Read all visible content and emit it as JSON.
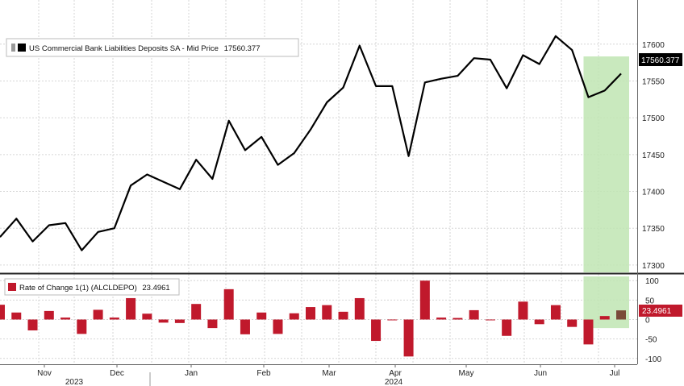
{
  "chart_data": [
    {
      "type": "line",
      "legend": "US Commercial Bank Liabilities Deposits SA - Mid Price",
      "last_value_label": "17560.377",
      "last_price_tag": "17560.377",
      "y_ticks": [
        "17300",
        "17350",
        "17400",
        "17450",
        "17500",
        "17550",
        "17600"
      ],
      "ylim": [
        17290,
        17660
      ],
      "grid": true,
      "legend_position": "top-left",
      "colors": {
        "line": "#000000",
        "highlight": "#bfe5b3",
        "tag_bg": "#000000"
      },
      "series": [
        {
          "values": [
            17338,
            17363,
            17332,
            17354,
            17357,
            17320,
            17345,
            17350,
            17408,
            17423,
            17413,
            17403,
            17443,
            17417,
            17496,
            17456,
            17474,
            17436,
            17452,
            17484,
            17521,
            17541,
            17598,
            17543,
            17543,
            17448,
            17548,
            17553,
            17557,
            17581,
            17579,
            17540,
            17585,
            17573,
            17611,
            17592,
            17528,
            17537,
            17560
          ]
        }
      ]
    },
    {
      "type": "bar",
      "legend": "Rate of Change 1(1) (ALCLDEPO)",
      "last_value_label": "23.4961",
      "last_price_tag": "23.4961",
      "y_ticks": [
        "-100",
        "-50",
        "0",
        "50",
        "100"
      ],
      "ylim": [
        -115,
        115
      ],
      "grid": true,
      "colors": {
        "bar": "#c0192c",
        "last_bar": "#7a4a3a",
        "tag_bg": "#c0192c",
        "highlight": "#bfe5b3"
      },
      "values": [
        38,
        18,
        -28,
        22,
        5,
        -37,
        25,
        5,
        55,
        15,
        -8,
        -9,
        40,
        -22,
        78,
        -38,
        18,
        -37,
        16,
        32,
        37,
        20,
        55,
        -55,
        0,
        -95,
        100,
        5,
        4,
        24,
        -2,
        -42,
        46,
        -12,
        37,
        -19,
        -64,
        9,
        23.5
      ]
    }
  ],
  "x_axis": {
    "month_labels": [
      "Nov",
      "Dec",
      "Jan",
      "Feb",
      "Mar",
      "Apr",
      "May",
      "Jun",
      "Jul"
    ],
    "year_labels": [
      "2023",
      "2024"
    ]
  }
}
